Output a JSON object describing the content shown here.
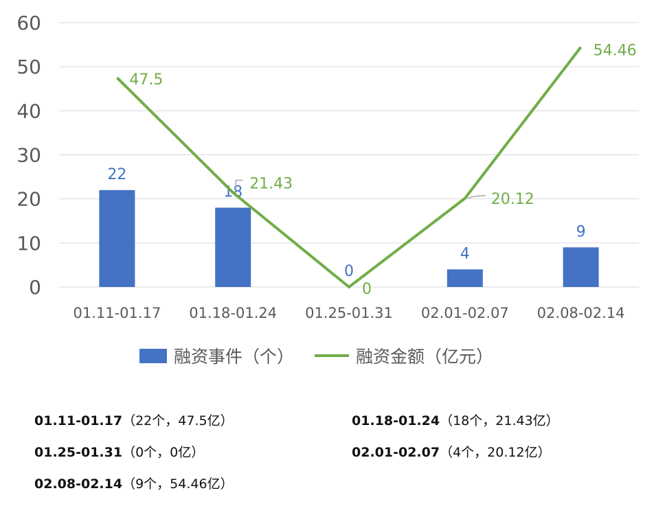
{
  "chart_data": {
    "type": "bar",
    "categories": [
      "01.11-01.17",
      "01.18-01.24",
      "01.25-01.31",
      "02.01-02.07",
      "02.08-02.14"
    ],
    "series": [
      {
        "name": "融资事件（个）",
        "type": "bar",
        "values": [
          22,
          18,
          0,
          4,
          9
        ],
        "color": "#4472C4",
        "labels": [
          "22",
          "18",
          "0",
          "4",
          "9"
        ]
      },
      {
        "name": "融资金额（亿元）",
        "type": "line",
        "values": [
          47.5,
          21.43,
          0,
          20.12,
          54.46
        ],
        "color": "#70AD47",
        "labels": [
          "47.5",
          "21.43",
          "0",
          "20.12",
          "54.46"
        ]
      }
    ],
    "ylim": [
      0,
      60
    ],
    "yticks": [
      "0",
      "10",
      "20",
      "30",
      "40",
      "50",
      "60"
    ],
    "grid": true,
    "legend_position": "bottom"
  },
  "notes": [
    {
      "period": "01.11-01.17",
      "detail": "（22个，47.5亿）"
    },
    {
      "period": "01.18-01.24",
      "detail": "（18个，21.43亿）"
    },
    {
      "period": "01.25-01.31",
      "detail": "（0个，0亿）"
    },
    {
      "period": "02.01-02.07",
      "detail": "（4个，20.12亿）"
    },
    {
      "period": "02.08-02.14",
      "detail": "（9个，54.46亿）"
    }
  ]
}
